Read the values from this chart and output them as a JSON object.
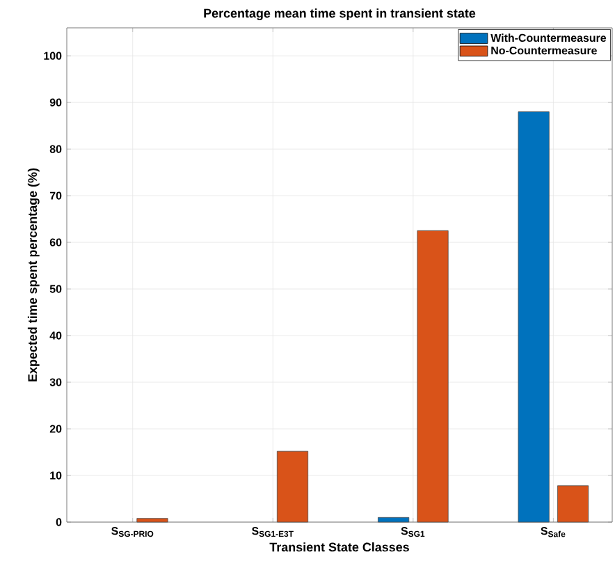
{
  "chart_data": {
    "type": "bar",
    "title": "Percentage mean time spent in transient state",
    "xlabel": "Transient State Classes",
    "ylabel": "Expected time spent percentage (%)",
    "categories": [
      "S$_{SG-PRIO}$",
      "S$_{SG1-E3T}$",
      "S$_{SG1}$",
      "S$_{Safe}$"
    ],
    "series": [
      {
        "name": "With-Countermeasure",
        "color": "#0072bd",
        "values": [
          null,
          null,
          1.0,
          88.0
        ]
      },
      {
        "name": "No-Countermeasure",
        "color": "#d95319",
        "values": [
          0.8,
          15.2,
          62.5,
          7.8
        ]
      }
    ],
    "ylim": [
      0,
      106
    ],
    "yticks": [
      0,
      10,
      20,
      30,
      40,
      50,
      60,
      70,
      80,
      90,
      100
    ],
    "grid": true,
    "legend": "top right"
  }
}
